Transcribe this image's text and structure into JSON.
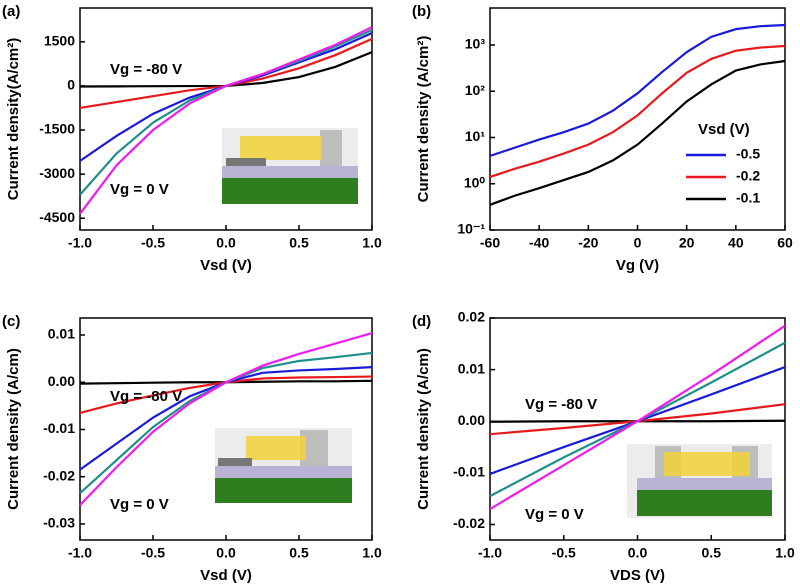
{
  "chart_data": [
    {
      "type": "line",
      "panel_label": "(a)",
      "xlabel": "Vsd (V)",
      "ylabel": "Current density(A/cm²)",
      "x": [
        -1,
        -0.75,
        -0.5,
        -0.25,
        0,
        0.25,
        0.5,
        0.75,
        1
      ],
      "xlim": [
        -1,
        1
      ],
      "xticks": [
        {
          "value": -1,
          "label": "-1.0"
        },
        {
          "value": -0.5,
          "label": "-0.5"
        },
        {
          "value": 0,
          "label": "0.0"
        },
        {
          "value": 0.5,
          "label": "0.5"
        },
        {
          "value": 1,
          "label": "1.0"
        }
      ],
      "ylim": [
        -4900,
        2650
      ],
      "yticks": [
        -4500,
        -3000,
        -1500,
        0,
        1500
      ],
      "annotations": [
        "Vg = -80 V",
        "Vg = 0 V"
      ],
      "series": [
        {
          "color": "#000000",
          "values": [
            -20,
            -15,
            -10,
            -5,
            0,
            100,
            300,
            650,
            1150
          ]
        },
        {
          "color": "#e8191c",
          "values": [
            -750,
            -550,
            -350,
            -150,
            0,
            250,
            600,
            1050,
            1600
          ]
        },
        {
          "color": "#1a1adb",
          "values": [
            -2550,
            -1700,
            -950,
            -400,
            0,
            350,
            800,
            1250,
            1800
          ]
        },
        {
          "color": "#1f8f8a",
          "values": [
            -3700,
            -2300,
            -1250,
            -500,
            0,
            400,
            850,
            1350,
            1900
          ]
        },
        {
          "color": "#ee1cee",
          "values": [
            -4350,
            -2700,
            -1500,
            -600,
            0,
            400,
            900,
            1400,
            2000
          ]
        }
      ]
    },
    {
      "type": "line",
      "panel_label": "(b)",
      "xlabel": "Vg (V)",
      "ylabel": "Current density (A/cm²)",
      "log_y": true,
      "x": [
        -60,
        -50,
        -40,
        -30,
        -20,
        -10,
        0,
        10,
        20,
        30,
        40,
        50,
        60
      ],
      "xlim": [
        -60,
        60
      ],
      "xticks": [
        -60,
        -40,
        -20,
        0,
        20,
        40,
        60
      ],
      "ylim": [
        0.1,
        6300
      ],
      "yticks": [
        {
          "value": 0.1,
          "label": "10⁻¹"
        },
        {
          "value": 1,
          "label": "10⁰"
        },
        {
          "value": 10,
          "label": "10¹"
        },
        {
          "value": 100,
          "label": "10²"
        },
        {
          "value": 1000,
          "label": "10³"
        }
      ],
      "legend_title": "Vsd (V)",
      "legend": "right",
      "series": [
        {
          "name": "-0.5",
          "color": "#1a1adb",
          "values": [
            4,
            6,
            9,
            13,
            20,
            38,
            90,
            260,
            700,
            1500,
            2200,
            2550,
            2700
          ]
        },
        {
          "name": "-0.2",
          "color": "#e8191c",
          "values": [
            1.4,
            2.1,
            3,
            4.5,
            7,
            13,
            30,
            90,
            250,
            500,
            750,
            880,
            950
          ]
        },
        {
          "name": "-0.1",
          "color": "#000000",
          "values": [
            0.35,
            0.55,
            0.8,
            1.2,
            1.8,
            3.2,
            7,
            20,
            60,
            140,
            280,
            380,
            450
          ]
        }
      ]
    },
    {
      "type": "line",
      "panel_label": "(c)",
      "xlabel": "Vsd (V)",
      "ylabel": "Current density (A/cm)",
      "x": [
        -1,
        -0.75,
        -0.5,
        -0.25,
        0,
        0.25,
        0.5,
        0.75,
        1
      ],
      "xlim": [
        -1,
        1
      ],
      "xticks": [
        {
          "value": -1,
          "label": "-1.0"
        },
        {
          "value": -0.5,
          "label": "-0.5"
        },
        {
          "value": 0,
          "label": "0.0"
        },
        {
          "value": 0.5,
          "label": "0.5"
        },
        {
          "value": 1,
          "label": "1.0"
        }
      ],
      "ylim": [
        -0.0334,
        0.0136
      ],
      "yticks": [
        -0.03,
        -0.02,
        -0.01,
        {
          "value": 0,
          "label": "0.00"
        },
        0.01
      ],
      "annotations": [
        "Vg = -80 V",
        "Vg = 0 V"
      ],
      "series": [
        {
          "color": "#000000",
          "values": [
            -0.0003,
            -0.0002,
            -0.0001,
            0,
            0,
            0.0001,
            0.0002,
            0.0002,
            0.0003
          ]
        },
        {
          "color": "#e8191c",
          "values": [
            -0.0065,
            -0.0045,
            -0.0028,
            -0.0012,
            0,
            0.0008,
            0.001,
            0.0011,
            0.0012
          ]
        },
        {
          "color": "#1a1adb",
          "values": [
            -0.0185,
            -0.013,
            -0.0075,
            -0.003,
            0,
            0.002,
            0.0025,
            0.0028,
            0.0032
          ]
        },
        {
          "color": "#1f8f8a",
          "values": [
            -0.0235,
            -0.0165,
            -0.0095,
            -0.004,
            0,
            0.003,
            0.0045,
            0.0053,
            0.0062
          ]
        },
        {
          "color": "#ee1cee",
          "values": [
            -0.026,
            -0.018,
            -0.0105,
            -0.0045,
            0,
            0.0035,
            0.006,
            0.0082,
            0.0104
          ]
        }
      ]
    },
    {
      "type": "line",
      "panel_label": "(d)",
      "xlabel": "VDS (V)",
      "ylabel": "Current density (A/cm)",
      "x": [
        -1,
        -0.5,
        0,
        0.5,
        1
      ],
      "xlim": [
        -1,
        1
      ],
      "xticks": [
        {
          "value": -1,
          "label": "-1.0"
        },
        {
          "value": -0.5,
          "label": "-0.5"
        },
        {
          "value": 0,
          "label": "0.0"
        },
        {
          "value": 0.5,
          "label": "0.5"
        },
        {
          "value": 1,
          "label": "1.0"
        }
      ],
      "ylim": [
        -0.023,
        0.02
      ],
      "yticks": [
        -0.02,
        -0.01,
        {
          "value": 0,
          "label": "0.00"
        },
        0.01,
        0.02
      ],
      "annotations": [
        "Vg = -80 V",
        "Vg = 0 V"
      ],
      "series": [
        {
          "color": "#000000",
          "values": [
            -0.0001,
            0,
            0,
            0,
            0.0001
          ]
        },
        {
          "color": "#e8191c",
          "values": [
            -0.0025,
            -0.0013,
            0,
            0.0015,
            0.0033
          ]
        },
        {
          "color": "#1a1adb",
          "values": [
            -0.0102,
            -0.005,
            0,
            0.0052,
            0.0105
          ]
        },
        {
          "color": "#1f8f8a",
          "values": [
            -0.0145,
            -0.007,
            0,
            0.0075,
            0.0152
          ]
        },
        {
          "color": "#ee1cee",
          "values": [
            -0.017,
            -0.0085,
            0,
            0.009,
            0.0185
          ]
        }
      ]
    }
  ]
}
